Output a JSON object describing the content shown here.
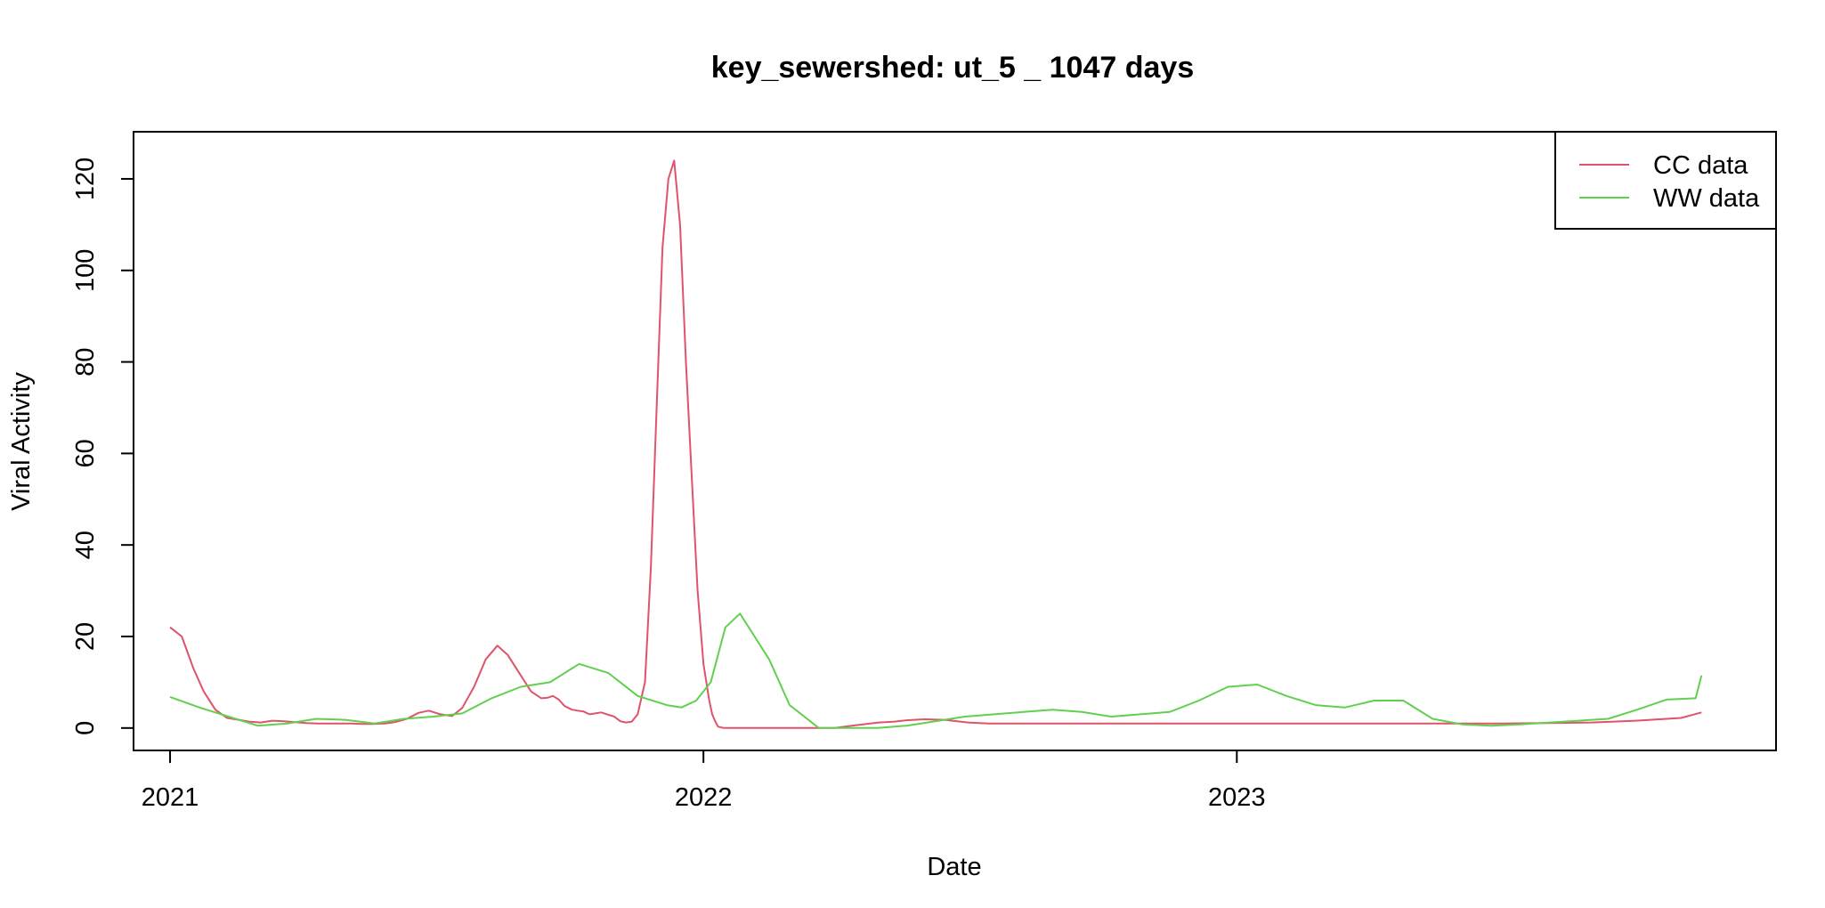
{
  "chart_data": {
    "type": "line",
    "title": "key_sewershed:  ut_5 _ 1047  days",
    "xlabel": "Date",
    "ylabel": "Viral Activity",
    "x_ticks": [
      "2021",
      "2022",
      "2023"
    ],
    "y_ticks": [
      0,
      20,
      40,
      60,
      80,
      100,
      120
    ],
    "xlim": [
      "2020-12-07",
      "2024-01-05"
    ],
    "ylim": [
      -4.9,
      130.3
    ],
    "grid": false,
    "legend_position": "top-right",
    "series": [
      {
        "name": "CC data",
        "color": "#DF536B",
        "x": [
          "2021-01-01",
          "2021-01-09",
          "2021-01-17",
          "2021-01-24",
          "2021-02-01",
          "2021-02-09",
          "2021-02-17",
          "2021-02-24",
          "2021-03-04",
          "2021-03-12",
          "2021-03-19",
          "2021-03-27",
          "2021-04-04",
          "2021-04-12",
          "2021-04-19",
          "2021-04-27",
          "2021-05-05",
          "2021-05-12",
          "2021-05-20",
          "2021-05-28",
          "2021-06-04",
          "2021-06-12",
          "2021-06-20",
          "2021-06-27",
          "2021-07-05",
          "2021-07-13",
          "2021-07-20",
          "2021-07-28",
          "2021-08-05",
          "2021-08-13",
          "2021-08-20",
          "2021-08-28",
          "2021-09-05",
          "2021-09-12",
          "2021-09-16",
          "2021-09-20",
          "2021-09-24",
          "2021-09-28",
          "2021-10-03",
          "2021-10-07",
          "2021-10-11",
          "2021-10-15",
          "2021-10-19",
          "2021-10-23",
          "2021-10-27",
          "2021-11-01",
          "2021-11-05",
          "2021-11-09",
          "2021-11-13",
          "2021-11-17",
          "2021-11-22",
          "2021-11-26",
          "2021-11-30",
          "2021-12-04",
          "2021-12-08",
          "2021-12-12",
          "2021-12-16",
          "2021-12-20",
          "2021-12-24",
          "2021-12-28",
          "2022-01-01",
          "2022-01-05",
          "2022-01-07",
          "2022-01-09",
          "2022-01-11",
          "2022-01-15",
          "2022-01-19",
          "2022-01-23",
          "2022-01-27",
          "2022-01-31",
          "2022-02-04",
          "2022-02-08",
          "2022-02-12",
          "2022-02-18",
          "2022-02-23",
          "2022-03-01",
          "2022-03-15",
          "2022-04-01",
          "2022-04-15",
          "2022-05-01",
          "2022-05-12",
          "2022-05-20",
          "2022-06-01",
          "2022-06-15",
          "2022-07-01",
          "2022-07-15",
          "2022-08-01",
          "2022-08-15",
          "2022-09-01",
          "2022-10-01",
          "2022-11-01",
          "2022-12-01",
          "2023-01-01",
          "2023-02-01",
          "2023-03-01",
          "2023-04-01",
          "2023-05-01",
          "2023-06-01",
          "2023-07-01",
          "2023-08-01",
          "2023-09-01",
          "2023-10-01",
          "2023-11-01",
          "2023-11-15"
        ],
        "y": [
          22,
          20,
          13,
          8,
          4,
          2.2,
          1.8,
          1.4,
          1.2,
          1.6,
          1.5,
          1.3,
          1.1,
          1,
          1,
          1,
          1,
          0.9,
          0.9,
          1,
          1.3,
          2,
          3.3,
          3.8,
          3,
          2.6,
          4.4,
          9,
          15,
          18,
          16,
          12,
          8,
          6.5,
          6.6,
          7,
          6.2,
          4.8,
          4,
          3.8,
          3.6,
          3,
          3.2,
          3.4,
          3,
          2.5,
          1.5,
          1.2,
          1.4,
          3,
          10,
          35,
          70,
          105,
          120,
          124,
          110,
          80,
          55,
          30,
          14,
          6,
          3,
          1.5,
          0.3,
          0,
          0,
          0,
          0,
          0,
          0,
          0,
          0,
          0,
          0,
          0,
          0,
          0,
          0.6,
          1.2,
          1.4,
          1.7,
          1.9,
          1.8,
          1.2,
          1,
          1,
          1,
          1,
          1,
          1,
          1,
          1,
          1,
          1,
          1,
          1,
          1,
          1,
          1.1,
          1.2,
          1.6,
          2.2,
          3.4
        ]
      },
      {
        "name": "WW data",
        "color": "#61D04F",
        "x": [
          "2021-01-01",
          "2021-01-21",
          "2021-02-10",
          "2021-03-02",
          "2021-03-22",
          "2021-04-11",
          "2021-05-01",
          "2021-05-21",
          "2021-06-10",
          "2021-06-30",
          "2021-07-20",
          "2021-08-09",
          "2021-08-29",
          "2021-09-18",
          "2021-10-08",
          "2021-10-28",
          "2021-11-17",
          "2021-12-07",
          "2021-12-17",
          "2021-12-27",
          "2022-01-06",
          "2022-01-16",
          "2022-01-26",
          "2022-02-05",
          "2022-02-15",
          "2022-03-01",
          "2022-03-21",
          "2022-04-10",
          "2022-04-30",
          "2022-05-20",
          "2022-06-09",
          "2022-06-29",
          "2022-07-19",
          "2022-08-08",
          "2022-08-28",
          "2022-09-17",
          "2022-10-07",
          "2022-10-27",
          "2022-11-16",
          "2022-12-06",
          "2022-12-26",
          "2023-01-15",
          "2023-02-04",
          "2023-02-24",
          "2023-03-16",
          "2023-04-05",
          "2023-04-25",
          "2023-05-15",
          "2023-06-04",
          "2023-06-24",
          "2023-07-14",
          "2023-08-03",
          "2023-08-23",
          "2023-09-12",
          "2023-10-02",
          "2023-10-22",
          "2023-11-11",
          "2023-11-15"
        ],
        "y": [
          6.8,
          4.5,
          2.5,
          0.5,
          1,
          2,
          1.8,
          1,
          2,
          2.5,
          3.2,
          6.5,
          9,
          10,
          14,
          12,
          7,
          5,
          4.5,
          6,
          10,
          22,
          25,
          20,
          15,
          5,
          0,
          0,
          0,
          0.5,
          1.5,
          2.5,
          3,
          3.5,
          4,
          3.5,
          2.5,
          3,
          3.5,
          6,
          9,
          9.5,
          7,
          5,
          4.5,
          6,
          6,
          2,
          0.8,
          0.5,
          0.8,
          1.2,
          1.6,
          2,
          4,
          6.2,
          6.5,
          11.5
        ]
      }
    ]
  }
}
